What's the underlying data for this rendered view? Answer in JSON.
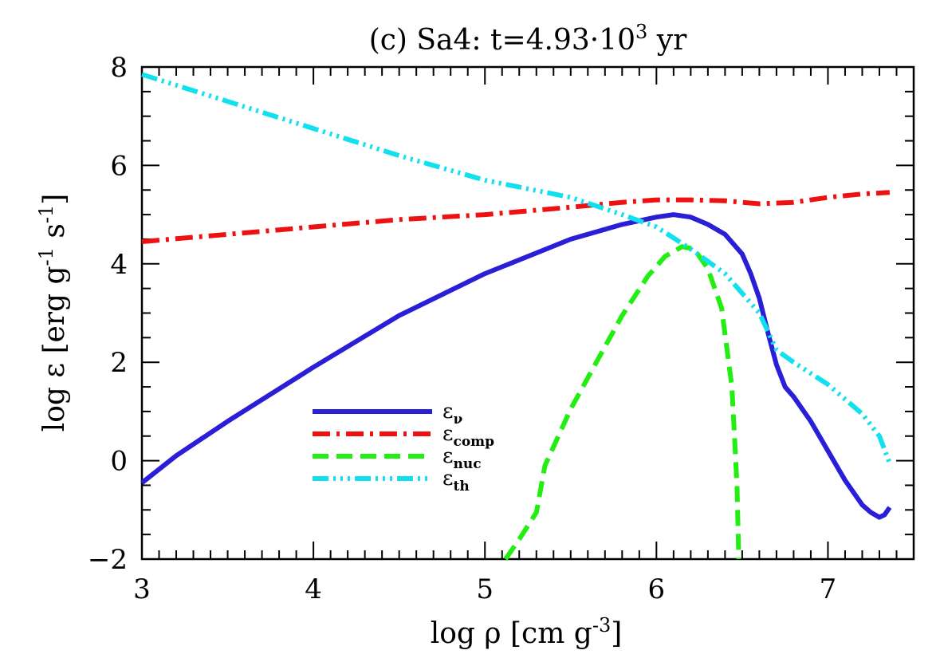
{
  "chart_data": {
    "type": "line",
    "title": {
      "prefix": "(c) Sa4: t=4.93·10",
      "sup": "3",
      "suffix": " yr"
    },
    "xlabel": {
      "base": "log ρ [cm g",
      "sup": "-3",
      "end": "]"
    },
    "ylabel": {
      "part1": "log ε [erg g",
      "sup1": "-1",
      "part2": " s",
      "sup2": "-1",
      "end": "]"
    },
    "xlim": [
      3,
      7.5
    ],
    "ylim": [
      -2,
      8
    ],
    "xticks": [
      3,
      4,
      5,
      6,
      7
    ],
    "xtick_labels": [
      "3",
      "4",
      "5",
      "6",
      "7"
    ],
    "yticks": [
      -2,
      0,
      2,
      4,
      6,
      8
    ],
    "ytick_labels": [
      "−2",
      "0",
      "2",
      "4",
      "6",
      "8"
    ],
    "grid": false,
    "legend_position": "lower-left",
    "series": [
      {
        "name": "ε",
        "sub": "ν",
        "color": "#2a1fd6",
        "dash": "solid",
        "x": [
          3.0,
          3.2,
          3.5,
          4.0,
          4.5,
          5.0,
          5.5,
          5.8,
          6.0,
          6.1,
          6.2,
          6.3,
          6.4,
          6.5,
          6.55,
          6.6,
          6.65,
          6.7,
          6.75,
          6.8,
          6.9,
          7.0,
          7.1,
          7.2,
          7.25,
          7.3,
          7.33,
          7.36
        ],
        "y": [
          -0.45,
          0.1,
          0.8,
          1.9,
          2.95,
          3.8,
          4.5,
          4.8,
          4.95,
          5.0,
          4.95,
          4.8,
          4.6,
          4.2,
          3.8,
          3.3,
          2.6,
          1.95,
          1.5,
          1.3,
          0.8,
          0.2,
          -0.4,
          -0.9,
          -1.05,
          -1.15,
          -1.1,
          -0.95
        ]
      },
      {
        "name": "ε",
        "sub": "comp",
        "color": "#ee1111",
        "dash": "dashdot",
        "x": [
          3.0,
          3.5,
          4.0,
          4.5,
          5.0,
          5.5,
          5.8,
          6.0,
          6.2,
          6.4,
          6.6,
          6.8,
          7.0,
          7.2,
          7.36
        ],
        "y": [
          4.45,
          4.6,
          4.75,
          4.9,
          5.0,
          5.15,
          5.25,
          5.3,
          5.3,
          5.28,
          5.22,
          5.25,
          5.35,
          5.42,
          5.45
        ]
      },
      {
        "name": "ε",
        "sub": "nuc",
        "color": "#22ee11",
        "dash": "dashed",
        "x": [
          5.12,
          5.2,
          5.3,
          5.35,
          5.5,
          5.65,
          5.8,
          5.95,
          6.05,
          6.15,
          6.22,
          6.3,
          6.38,
          6.44,
          6.47,
          6.48
        ],
        "y": [
          -2.0,
          -1.6,
          -1.05,
          -0.1,
          1.05,
          2.0,
          2.95,
          3.75,
          4.15,
          4.35,
          4.3,
          3.9,
          3.1,
          1.5,
          -0.5,
          -2.0
        ]
      },
      {
        "name": "ε",
        "sub": "th",
        "color": "#11e0ee",
        "dash": "dashdotdotdot",
        "x": [
          3.0,
          3.5,
          4.0,
          4.5,
          5.0,
          5.5,
          5.8,
          6.0,
          6.2,
          6.4,
          6.6,
          6.7,
          6.8,
          7.0,
          7.2,
          7.3,
          7.36
        ],
        "y": [
          7.85,
          7.3,
          6.75,
          6.2,
          5.7,
          5.35,
          5.0,
          4.75,
          4.3,
          3.8,
          3.0,
          2.25,
          2.0,
          1.55,
          0.95,
          0.5,
          -0.05
        ]
      }
    ]
  }
}
